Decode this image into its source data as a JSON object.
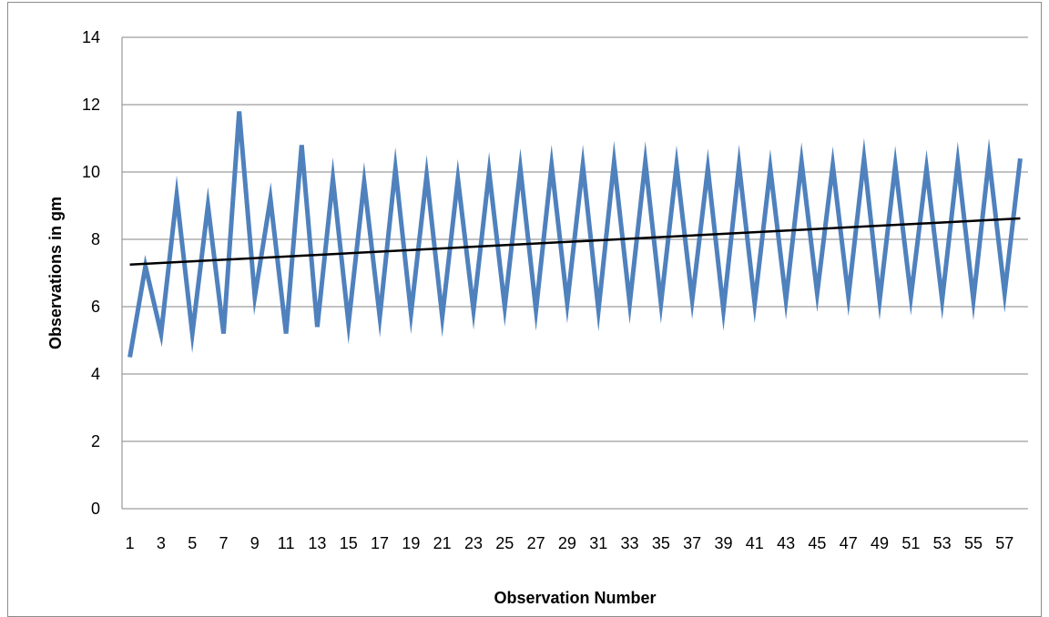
{
  "chart_data": {
    "type": "line",
    "title": "",
    "xlabel": "Observation Number",
    "ylabel": "Observations in gm",
    "ylim": [
      0,
      14
    ],
    "yticks": [
      0,
      2,
      4,
      6,
      8,
      10,
      12,
      14
    ],
    "x_tick_labels": [
      "1",
      "3",
      "5",
      "7",
      "9",
      "11",
      "13",
      "15",
      "17",
      "19",
      "21",
      "23",
      "25",
      "27",
      "29",
      "31",
      "33",
      "35",
      "37",
      "39",
      "41",
      "43",
      "45",
      "47",
      "49",
      "51",
      "53",
      "55",
      "57"
    ],
    "grid": "horizontal",
    "legend": "none",
    "series": [
      {
        "color": "#4f81bd",
        "x": [
          1,
          2,
          3,
          4,
          5,
          6,
          7,
          8,
          9,
          10,
          11,
          12,
          13,
          14,
          15,
          16,
          17,
          18,
          19,
          20,
          21,
          22,
          23,
          24,
          25,
          26,
          27,
          28,
          29,
          30,
          31,
          32,
          33,
          34,
          35,
          36,
          37,
          38,
          39,
          40,
          41,
          42,
          43,
          44,
          45,
          46,
          47,
          48,
          49,
          50,
          51,
          52,
          53,
          54,
          55,
          56,
          57,
          58
        ],
        "values": [
          4.5,
          7.2,
          5.2,
          9.3,
          5.2,
          9.0,
          5.2,
          11.8,
          6.3,
          9.2,
          5.2,
          10.8,
          5.4,
          9.8,
          5.5,
          9.7,
          5.7,
          10.1,
          5.8,
          9.9,
          5.7,
          9.8,
          5.9,
          10.0,
          6.0,
          10.1,
          5.9,
          10.2,
          6.1,
          10.2,
          5.9,
          10.3,
          6.1,
          10.3,
          6.1,
          10.2,
          6.2,
          10.1,
          5.9,
          10.2,
          6.1,
          10.1,
          6.2,
          10.3,
          6.4,
          10.2,
          6.3,
          10.4,
          6.2,
          10.2,
          6.3,
          10.1,
          6.2,
          10.3,
          6.2,
          10.4,
          6.4,
          10.4
        ]
      }
    ],
    "trendline": {
      "type": "linear",
      "color": "#000000",
      "x": [
        1,
        58
      ],
      "values": [
        7.25,
        8.62
      ]
    }
  }
}
